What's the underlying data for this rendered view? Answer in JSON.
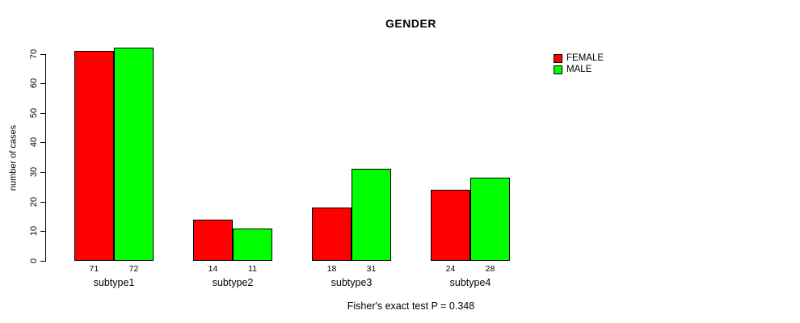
{
  "title": "GENDER",
  "caption": "Fisher's exact test P = 0.348",
  "colors": {
    "female": "#FF0000",
    "male": "#00FF00",
    "axis": "#000000",
    "text": "#000000",
    "background": "#FFFFFF"
  },
  "legend": {
    "position": "top-right",
    "items": [
      {
        "label": "FEMALE",
        "color": "#FF0000"
      },
      {
        "label": "MALE",
        "color": "#00FF00"
      }
    ]
  },
  "chart_data": {
    "type": "bar",
    "title": "GENDER",
    "xlabel": "",
    "ylabel": "number of cases",
    "categories": [
      "subtype1",
      "subtype2",
      "subtype3",
      "subtype4"
    ],
    "series": [
      {
        "name": "FEMALE",
        "color": "#FF0000",
        "values": [
          71,
          14,
          18,
          24
        ]
      },
      {
        "name": "MALE",
        "color": "#00FF00",
        "values": [
          72,
          11,
          31,
          28
        ]
      }
    ],
    "ylim": [
      0,
      70
    ],
    "yticks": [
      0,
      10,
      20,
      30,
      40,
      50,
      60,
      70
    ],
    "grid": false,
    "legend_position": "top-right",
    "bar_value_labels_shown": true,
    "annotation": "Fisher's exact test P = 0.348"
  }
}
